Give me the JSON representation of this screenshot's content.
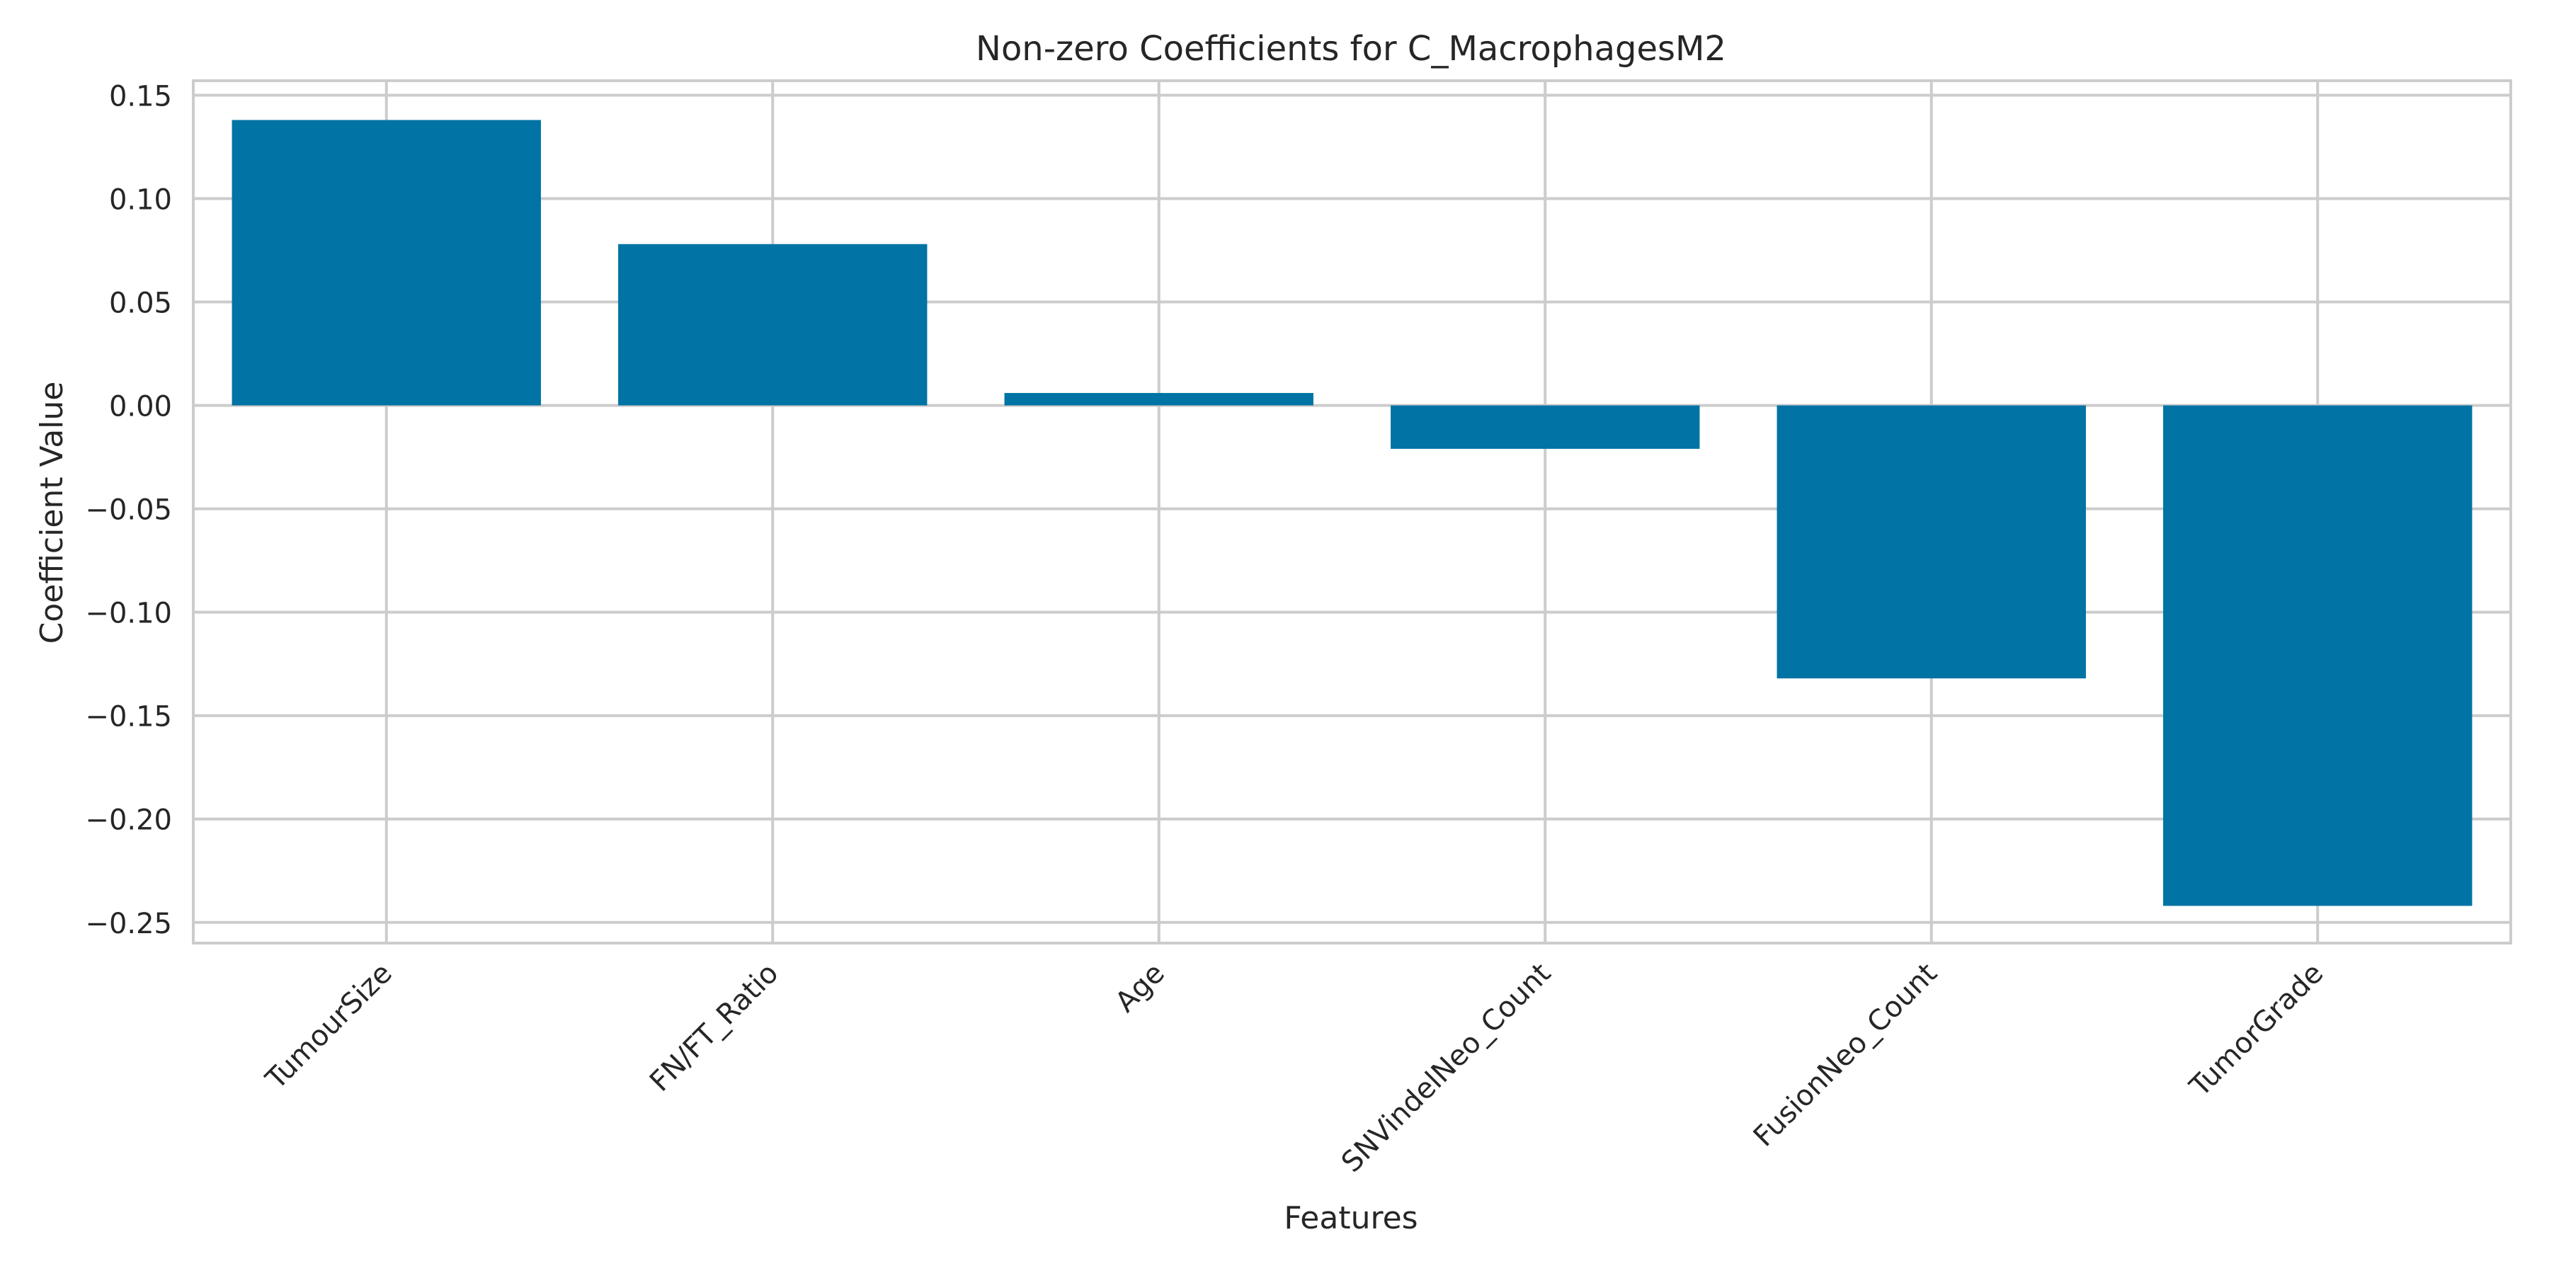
{
  "chart_data": {
    "type": "bar",
    "title": "Non-zero Coefficients for C_MacrophagesM2",
    "xlabel": "Features",
    "ylabel": "Coefficient Value",
    "categories": [
      "TumourSize",
      "FN/FT_Ratio",
      "Age",
      "SNVindelNeo_Count",
      "FusionNeo_Count",
      "TumorGrade"
    ],
    "values": [
      0.138,
      0.078,
      0.006,
      -0.021,
      -0.132,
      -0.242
    ],
    "ylim": [
      -0.26,
      0.157
    ],
    "yticks": [
      0.15,
      0.1,
      0.05,
      0.0,
      -0.05,
      -0.1,
      -0.15,
      -0.2,
      -0.25
    ],
    "ytick_labels": [
      "0.15",
      "0.10",
      "0.05",
      "0.00",
      "−0.05",
      "−0.10",
      "−0.15",
      "−0.20",
      "−0.25"
    ],
    "grid": true,
    "bar_color": "#0173a4",
    "grid_color": "#cccccc"
  }
}
